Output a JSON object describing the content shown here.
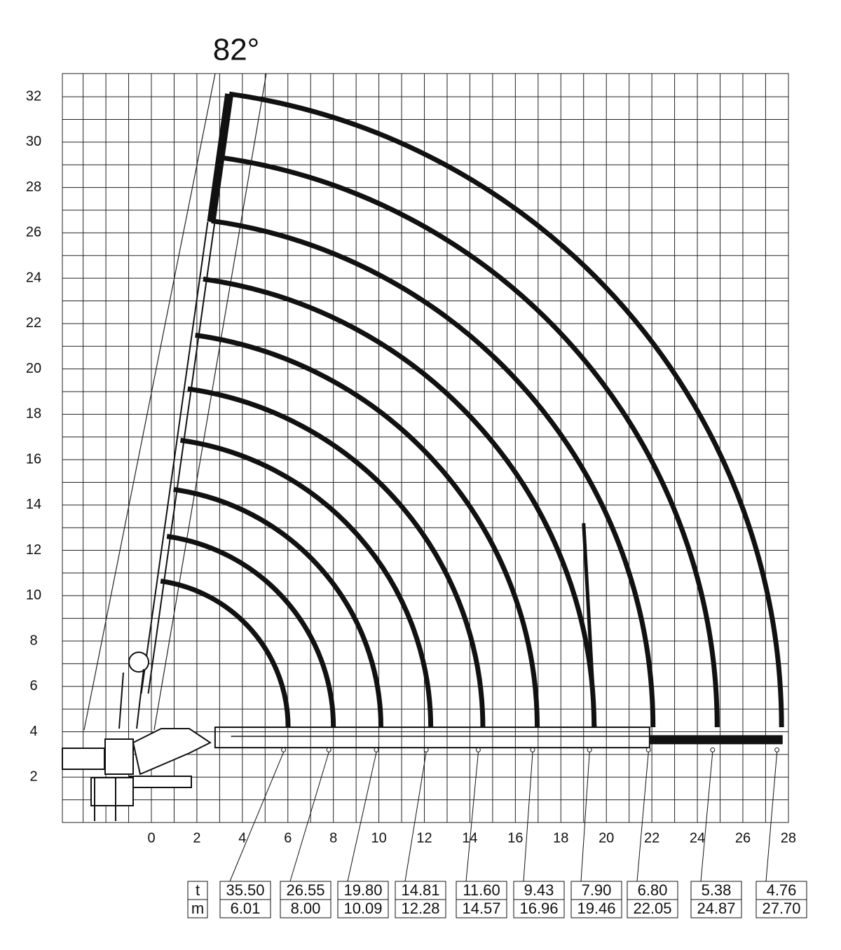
{
  "angle_label": "82°",
  "y_axis": {
    "ticks": [
      "2",
      "4",
      "6",
      "8",
      "10",
      "12",
      "14",
      "16",
      "18",
      "20",
      "22",
      "24",
      "26",
      "28",
      "30",
      "32"
    ]
  },
  "x_axis": {
    "ticks": [
      "0",
      "2",
      "4",
      "6",
      "8",
      "10",
      "12",
      "14",
      "16",
      "18",
      "20",
      "22",
      "24",
      "26",
      "28"
    ]
  },
  "table": {
    "row_labels": [
      "t",
      "m"
    ],
    "columns": [
      {
        "t": "35.50",
        "m": "6.01"
      },
      {
        "t": "26.55",
        "m": "8.00"
      },
      {
        "t": "19.80",
        "m": "10.09"
      },
      {
        "t": "14.81",
        "m": "12.28"
      },
      {
        "t": "11.60",
        "m": "14.57"
      },
      {
        "t": "9.43",
        "m": "16.96"
      },
      {
        "t": "7.90",
        "m": "19.46"
      },
      {
        "t": "6.80",
        "m": "22.05"
      },
      {
        "t": "5.38",
        "m": "24.87"
      },
      {
        "t": "4.76",
        "m": "27.70"
      }
    ]
  }
}
